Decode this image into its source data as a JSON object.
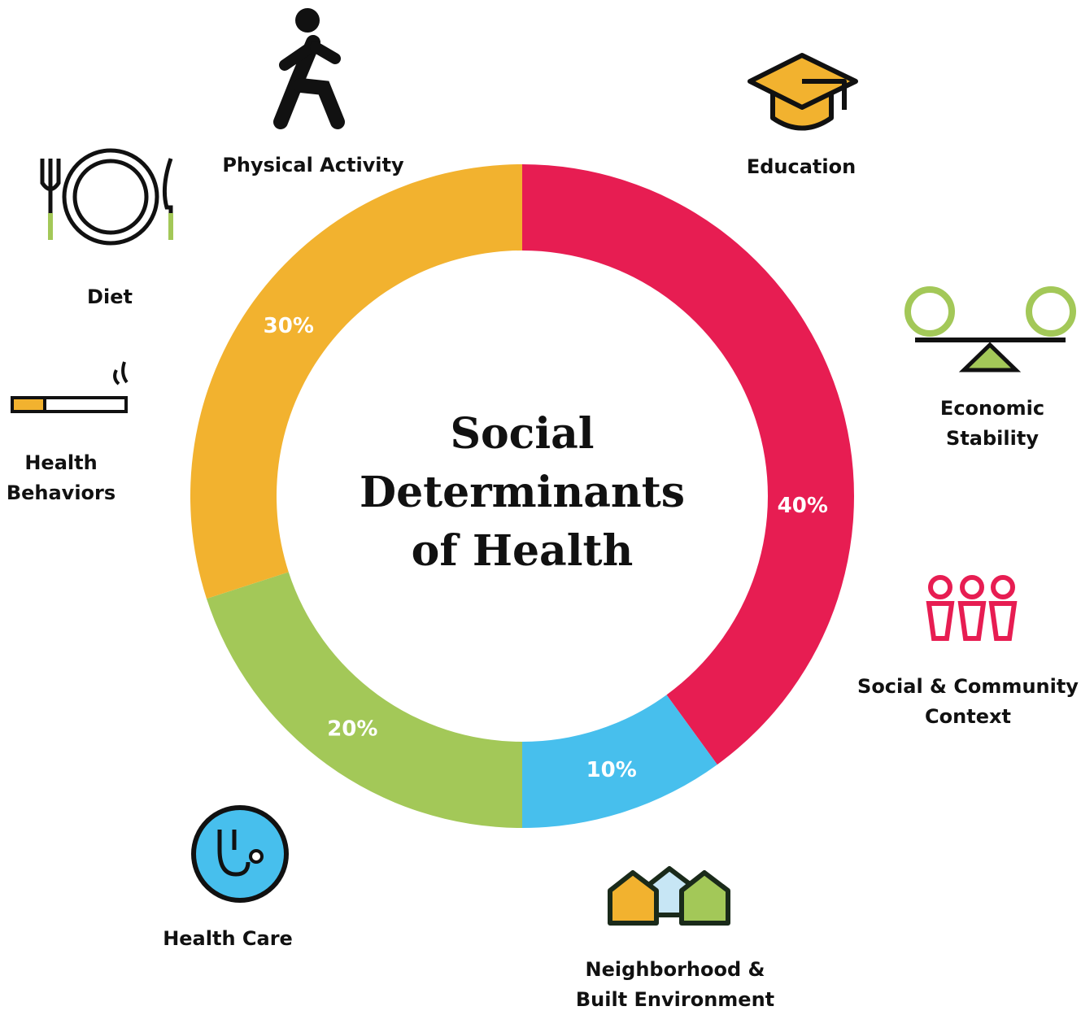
{
  "chart_data": {
    "type": "donut",
    "title": "Social Determinants of Health",
    "values": [
      40,
      10,
      20,
      30
    ],
    "value_labels": [
      "40%",
      "10%",
      "20%",
      "30%"
    ],
    "colors": [
      "#e71d52",
      "#47bfed",
      "#a3c858",
      "#f2b22f"
    ],
    "annotations": [
      "Physical Activity",
      "Education",
      "Diet",
      "Economic Stability",
      "Health Behaviors",
      "Social & Community Context",
      "Health Care",
      "Neighborhood & Built Environment"
    ]
  }
}
